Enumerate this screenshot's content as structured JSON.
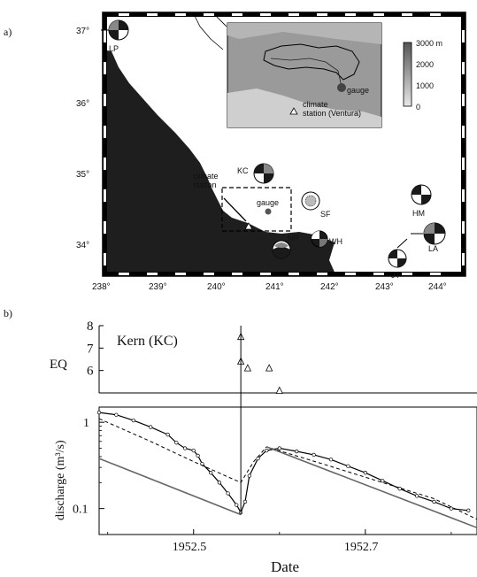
{
  "panel_a": {
    "label": "a)",
    "lon_ticks": [
      "238°",
      "239°",
      "240°",
      "241°",
      "242°",
      "243°",
      "244°"
    ],
    "lat_ticks": [
      "37°",
      "36°",
      "35°",
      "34°"
    ],
    "stations": [
      {
        "code": "LP"
      },
      {
        "code": "KC"
      },
      {
        "code": "SF"
      },
      {
        "code": "NR"
      },
      {
        "code": "WH"
      },
      {
        "code": "HM"
      },
      {
        "code": "LA"
      },
      {
        "code": "JT"
      }
    ],
    "annot_climate": "climate\nstation",
    "annot_gauge": "gauge",
    "inset": {
      "gauge": "gauge",
      "climate": "climate\nstation (Ventura)",
      "scale_labels": [
        "3000 m",
        "2000",
        "1000",
        "0"
      ]
    }
  },
  "panel_b": {
    "label": "b)",
    "title": "Kern (KC)",
    "eq_label": "EQ",
    "eq_ticks": [
      "8",
      "7",
      "6"
    ],
    "y_label": "discharge (m³/s)",
    "y_ticks": [
      "1",
      "0.1"
    ],
    "x_label": "Date",
    "x_ticks": [
      "1952.5",
      "1952.7"
    ]
  },
  "chart_data": {
    "type": "scatter",
    "title": "Kern (KC)",
    "xlabel": "Date",
    "ylabel": "discharge (m3/s)",
    "y_scale": "log",
    "xlim": [
      1952.39,
      1952.83
    ],
    "ylim": [
      0.05,
      1.5
    ],
    "eq_ylim": [
      5,
      8
    ],
    "earthquake_time": 1952.555,
    "earthquakes": [
      {
        "x": 1952.555,
        "mag": 7.5
      },
      {
        "x": 1952.555,
        "mag": 6.4
      },
      {
        "x": 1952.563,
        "mag": 6.1
      },
      {
        "x": 1952.588,
        "mag": 6.1
      },
      {
        "x": 1952.6,
        "mag": 5.1
      }
    ],
    "series": [
      {
        "points": [
          [
            1952.39,
            1.3
          ],
          [
            1952.41,
            1.22
          ],
          [
            1952.43,
            1.05
          ],
          [
            1952.45,
            0.88
          ],
          [
            1952.47,
            0.72
          ],
          [
            1952.48,
            0.58
          ],
          [
            1952.49,
            0.5
          ],
          [
            1952.5,
            0.47
          ],
          [
            1952.505,
            0.41
          ],
          [
            1952.51,
            0.33
          ],
          [
            1952.52,
            0.26
          ],
          [
            1952.53,
            0.2
          ],
          [
            1952.54,
            0.15
          ],
          [
            1952.55,
            0.11
          ],
          [
            1952.555,
            0.09
          ],
          [
            1952.56,
            0.12
          ],
          [
            1952.565,
            0.24
          ],
          [
            1952.575,
            0.38
          ],
          [
            1952.585,
            0.47
          ],
          [
            1952.6,
            0.5
          ],
          [
            1952.62,
            0.46
          ],
          [
            1952.64,
            0.42
          ],
          [
            1952.66,
            0.37
          ],
          [
            1952.68,
            0.31
          ],
          [
            1952.7,
            0.26
          ],
          [
            1952.72,
            0.21
          ],
          [
            1952.74,
            0.17
          ],
          [
            1952.76,
            0.14
          ],
          [
            1952.78,
            0.12
          ],
          [
            1952.8,
            0.1
          ],
          [
            1952.82,
            0.095
          ]
        ]
      },
      {
        "style": "dashed",
        "points": [
          [
            1952.39,
            1.1
          ],
          [
            1952.45,
            0.6
          ],
          [
            1952.5,
            0.35
          ],
          [
            1952.555,
            0.2
          ],
          [
            1952.57,
            0.35
          ],
          [
            1952.585,
            0.52
          ],
          [
            1952.65,
            0.33
          ],
          [
            1952.72,
            0.2
          ],
          [
            1952.78,
            0.13
          ],
          [
            1952.83,
            0.075
          ]
        ]
      },
      {
        "style": "solid",
        "segments": [
          [
            [
              1952.39,
              0.38
            ],
            [
              1952.555,
              0.085
            ]
          ],
          [
            [
              1952.585,
              0.52
            ],
            [
              1952.83,
              0.06
            ]
          ]
        ]
      }
    ]
  }
}
